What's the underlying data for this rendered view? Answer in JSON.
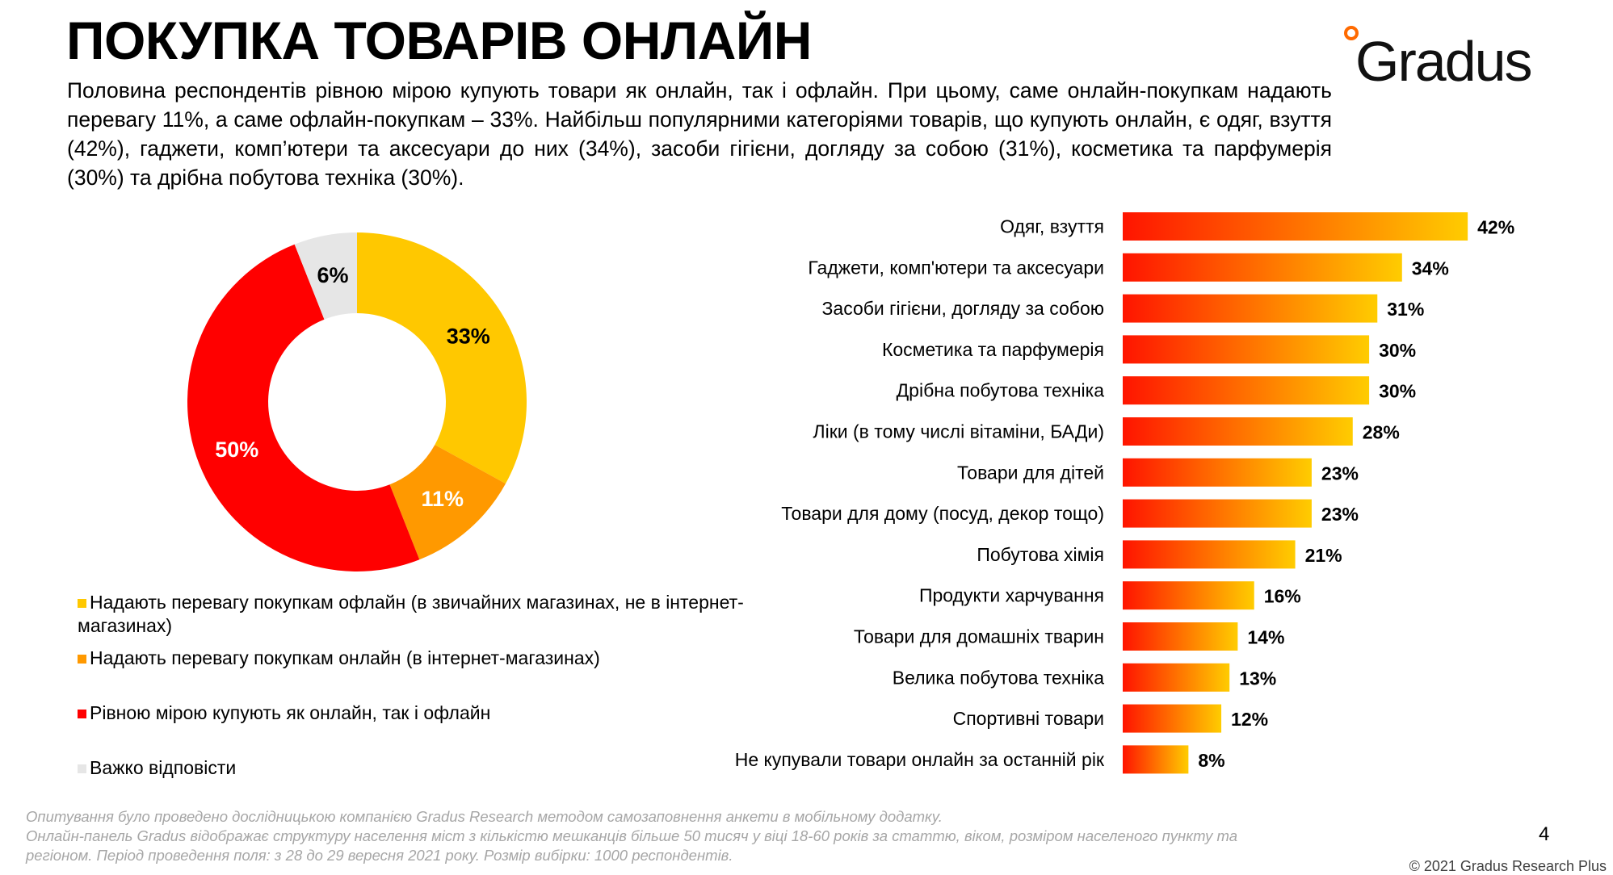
{
  "header": {
    "title": "ПОКУПКА ТОВАРІВ ОНЛАЙН",
    "logo_text": "Gradus",
    "intro": "Половина респондентів рівною мірою купують товари як онлайн, так і офлайн. При цьому, саме онлайн-покупкам надають перевагу 11%, а саме офлайн-покупкам – 33%. Найбільш популярними категоріями товарів, що купують онлайн, є одяг, взуття (42%), гаджети, комп’ютери та аксесуари до них (34%), засоби гігієни, догляду за собою (31%), косметика та парфумерія (30%) та дрібна побутова техніка (30%)."
  },
  "chart_data": [
    {
      "type": "pie",
      "variant": "donut",
      "legend_position": "bottom",
      "slices": [
        {
          "name": "Надають перевагу покупкам офлайн (в звичайних магазинах, не в інтернет-магазинах)",
          "value": 33,
          "label": "33%",
          "color": "#ffc800",
          "label_color": "#000000"
        },
        {
          "name": "Надають перевагу покупкам онлайн (в інтернет-магазинах)",
          "value": 11,
          "label": "11%",
          "color": "#ff9900",
          "label_color": "#ffffff"
        },
        {
          "name": "Рівною мірою купують як онлайн, так і офлайн",
          "value": 50,
          "label": "50%",
          "color": "#ff0000",
          "label_color": "#ffffff"
        },
        {
          "name": "Важко відповісти",
          "value": 6,
          "label": "6%",
          "color": "#e6e6e6",
          "label_color": "#000000"
        }
      ]
    },
    {
      "type": "bar",
      "orientation": "horizontal",
      "gradient": [
        "#ff1400",
        "#ffcc00"
      ],
      "categories": [
        "Одяг, взуття",
        "Гаджети, комп'ютери та аксесуари",
        "Засоби гігієни, догляду за собою",
        "Косметика та парфумерія",
        "Дрібна побутова техніка",
        "Ліки (в тому числі вітаміни, БАДи)",
        "Товари для дітей",
        "Товари для дому (посуд, декор тощо)",
        "Побутова хімія",
        "Продукти харчування",
        "Товари для домашніх тварин",
        "Велика побутова техніка",
        "Спортивні товари",
        "Не купували товари онлайн за останній рік"
      ],
      "values": [
        42,
        34,
        31,
        30,
        30,
        28,
        23,
        23,
        21,
        16,
        14,
        13,
        12,
        8
      ],
      "labels": [
        "42%",
        "34%",
        "31%",
        "30%",
        "30%",
        "28%",
        "23%",
        "23%",
        "21%",
        "16%",
        "14%",
        "13%",
        "12%",
        "8%"
      ]
    }
  ],
  "footer": {
    "lines": [
      "Опитування було проведено дослідницькою компанією Gradus Research методом самозаповнення анкети в мобільному додатку.",
      "Онлайн-панель Gradus відображає структуру населення міст з кількістю мешканців більше 50 тисяч у віці 18-60 років за статтю, віком, розміром населеного пункту та регіоном. Період проведення поля: з 28 до 29 вересня 2021 року. Розмір вибірки: 1000 респондентів."
    ],
    "page_number": "4",
    "copyright": "© 2021 Gradus Research Plus"
  }
}
